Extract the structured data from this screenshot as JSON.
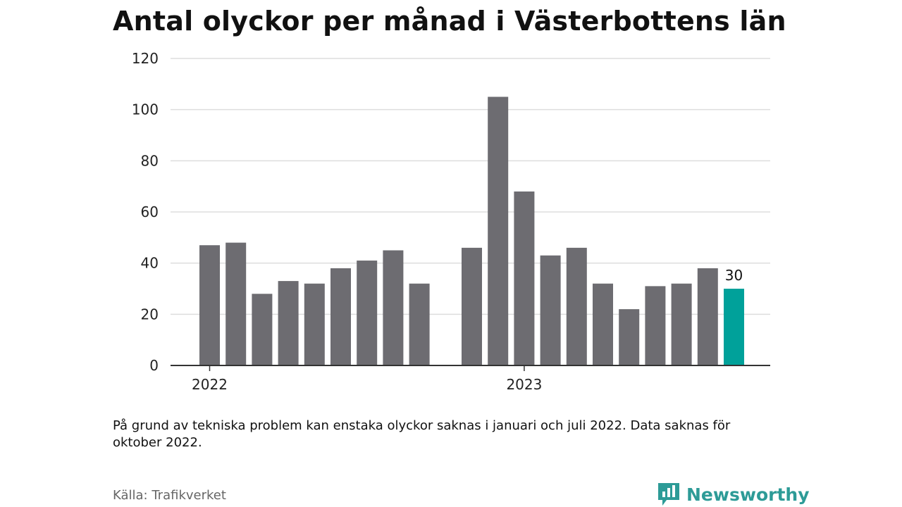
{
  "title": "Antal olyckor per månad i Västerbottens län",
  "note": "På grund av tekniska problem kan enstaka olyckor saknas i januari och juli 2022. Data saknas för oktober 2022.",
  "source": "Källa: Trafikverket",
  "logo": {
    "name": "Newsworthy",
    "icon": "newsworthy-logo-icon"
  },
  "colors": {
    "bar": "#6d6c71",
    "highlight": "#00a19a",
    "grid": "#dddddd",
    "axis": "#333333",
    "brand": "#2d9b97"
  },
  "chart_data": {
    "type": "bar",
    "ylim": [
      0,
      120
    ],
    "yticks": [
      0,
      20,
      40,
      60,
      80,
      100,
      120
    ],
    "grid": true,
    "year_labels": [
      "2022",
      "2023"
    ],
    "months": [
      "2022-01",
      "2022-02",
      "2022-03",
      "2022-04",
      "2022-05",
      "2022-06",
      "2022-07",
      "2022-08",
      "2022-09",
      "2022-10",
      "2022-11",
      "2022-12",
      "2023-01",
      "2023-02",
      "2023-03",
      "2023-04",
      "2023-05",
      "2023-06",
      "2023-07",
      "2023-08",
      "2023-09",
      "2023-10"
    ],
    "values": [
      47,
      48,
      28,
      33,
      32,
      38,
      41,
      45,
      32,
      null,
      46,
      105,
      68,
      43,
      46,
      32,
      22,
      31,
      32,
      38,
      30,
      null
    ],
    "highlight": {
      "month": "2023-09",
      "value": 30,
      "label": "30"
    }
  }
}
